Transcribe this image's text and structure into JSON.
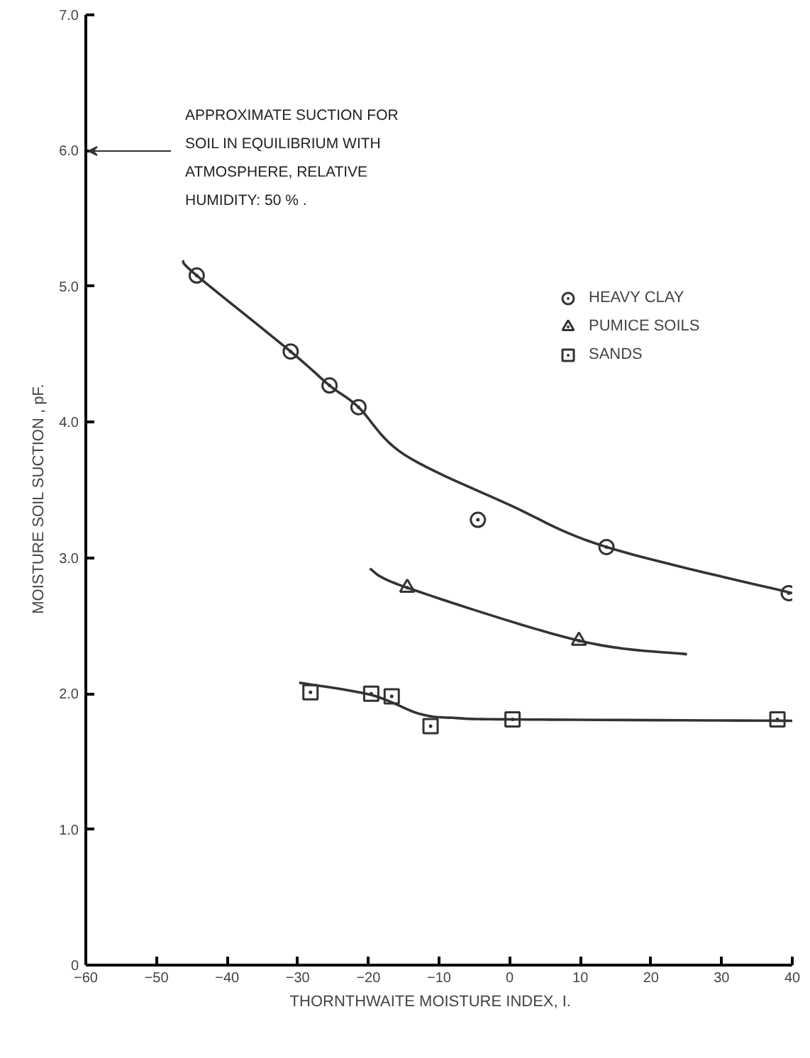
{
  "chart_data": {
    "type": "scatter",
    "xlabel": "THORNTHWAITE   MOISTURE   INDEX, I.",
    "ylabel": "MOISTURE   SOIL   SUCTION , pF.",
    "xlim": [
      -60,
      40
    ],
    "ylim": [
      0,
      7
    ],
    "xticks": [
      -60,
      -50,
      -40,
      -30,
      -20,
      -10,
      0,
      10,
      20,
      30,
      40
    ],
    "yticks": [
      {
        "value": 0,
        "label": "0"
      },
      {
        "value": 1,
        "label": "1.0"
      },
      {
        "value": 2,
        "label": "2.0"
      },
      {
        "value": 3,
        "label": "3.0"
      },
      {
        "value": 4,
        "label": "4.0"
      },
      {
        "value": 5,
        "label": "5.0"
      },
      {
        "value": 6,
        "label": "6.0"
      },
      {
        "value": 7,
        "label": "7.0"
      }
    ],
    "grid": false,
    "legend": "top right",
    "series": [
      {
        "name": "HEAVY CLAY",
        "color": "#333333",
        "marker": "circle",
        "x": [
          -44.3,
          -31.0,
          -25.5,
          -21.4,
          -4.5,
          13.7,
          39.5
        ],
        "values": [
          5.08,
          4.52,
          4.27,
          4.11,
          3.28,
          3.08,
          2.74
        ]
      },
      {
        "name": "PUMICE SOILS",
        "color": "#333333",
        "marker": "triangle",
        "x": [
          -14.5,
          9.8
        ],
        "values": [
          2.78,
          2.39
        ]
      },
      {
        "name": "SANDS",
        "color": "#333333",
        "marker": "square",
        "x": [
          -28.2,
          -19.6,
          -16.7,
          -11.2,
          0.4,
          37.9
        ],
        "values": [
          2.01,
          2.0,
          1.98,
          1.76,
          1.81,
          1.81
        ]
      },
      {
        "type": "line",
        "color": "#333333",
        "x": [
          -46.3,
          -44.3,
          -31.0,
          -25.5,
          -21.4,
          -14.9,
          0,
          13.7,
          40
        ],
        "values": [
          5.19,
          5.08,
          4.52,
          4.27,
          4.11,
          3.76,
          3.39,
          3.08,
          2.74
        ]
      },
      {
        "type": "line",
        "color": "#333333",
        "x": [
          -19.8,
          -14.5,
          9.8,
          25.1
        ],
        "values": [
          2.92,
          2.78,
          2.39,
          2.29
        ]
      },
      {
        "type": "line",
        "color": "#333333",
        "x": [
          -29.8,
          -19.6,
          -12.7,
          -7.5,
          0.4,
          40
        ],
        "values": [
          2.08,
          1.99,
          1.85,
          1.82,
          1.81,
          1.8
        ]
      }
    ],
    "annotations": [
      "APPROXIMATE SUCTION FOR\nSOIL IN EQUILIBRIUM WITH\nATMOSPHERE, RELATIVE\nHUMIDITY: 50 % ."
    ]
  }
}
